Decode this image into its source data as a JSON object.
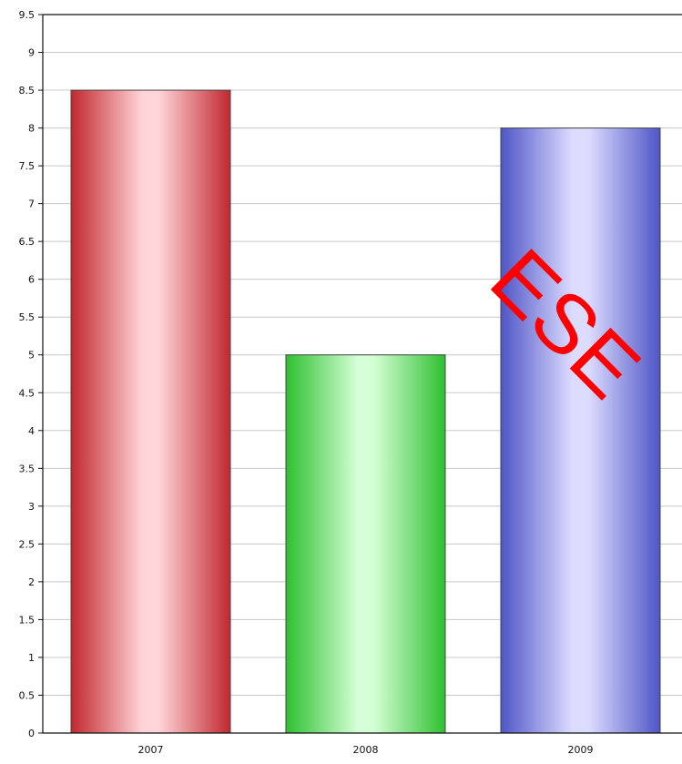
{
  "chart_data": {
    "type": "bar",
    "categories": [
      "2007",
      "2008",
      "2009"
    ],
    "values": [
      8.5,
      5,
      8
    ],
    "colors": [
      "#c0282e",
      "#2ec030",
      "#4f55c6"
    ],
    "highlight_colors": [
      "#ffd5d9",
      "#d5ffd6",
      "#dcdcff"
    ],
    "ylim": [
      0,
      9.5
    ],
    "y_ticks": [
      "0",
      "0.5",
      "1",
      "1.5",
      "2",
      "2.5",
      "3",
      "3.5",
      "4",
      "4.5",
      "5",
      "5.5",
      "6",
      "6.5",
      "7",
      "7.5",
      "8",
      "8.5",
      "9",
      "9.5"
    ],
    "grid": true,
    "title": "",
    "xlabel": "",
    "ylabel": ""
  },
  "watermark": {
    "text": "ESE",
    "color": "#ff0000"
  }
}
